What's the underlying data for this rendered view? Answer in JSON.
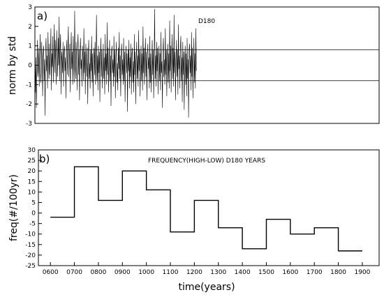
{
  "chart_data": [
    {
      "type": "line",
      "panel_label": "a)",
      "title": "D180",
      "ylabel": "norm by std",
      "ylim": [
        -3,
        3
      ],
      "yticks": [
        "-3",
        "-2",
        "-1",
        "0",
        "1",
        "2",
        "3"
      ],
      "reference_lines": [
        0.8,
        -0.8
      ],
      "grid": false,
      "series": [
        {
          "x_start": 550,
          "x_step": 2,
          "values": [
            0.7,
            -1.4,
            0.4,
            -2.2,
            -0.5,
            1.3,
            -0.6,
            -0.2,
            0.9,
            -1.1,
            0.5,
            1.6,
            -0.9,
            -0.4,
            1.2,
            0.1,
            -1.6,
            0.6,
            1.0,
            -0.8,
            0.3,
            -2.6,
            0.8,
            1.4,
            -0.3,
            0.5,
            -1.2,
            1.7,
            0.2,
            -0.7,
            1.1,
            -0.5,
            0.4,
            1.9,
            -1.3,
            0.6,
            -0.1,
            1.5,
            -0.9,
            0.8,
            2.1,
            -0.4,
            1.3,
            0.2,
            -1.0,
            1.8,
            0.5,
            -0.6,
            1.4,
            0.0,
            2.5,
            -0.8,
            0.9,
            1.6,
            -1.5,
            0.7,
            0.3,
            -0.4,
            1.2,
            -1.1,
            0.6,
            1.0,
            -0.3,
            0.4,
            -1.7,
            0.8,
            1.3,
            -0.5,
            0.9,
            2.0,
            -0.6,
            0.2,
            1.1,
            -1.4,
            0.5,
            1.7,
            -0.2,
            0.7,
            -1.0,
            1.5,
            0.3,
            -0.9,
            2.8,
            0.1,
            -0.7,
            1.2,
            0.4,
            -1.3,
            0.9,
            1.6,
            -0.5,
            0.8,
            -1.8,
            0.6,
            1.4,
            -0.2,
            0.3,
            -1.1,
            1.0,
            0.5,
            -0.8,
            1.9,
            -0.4,
            0.7,
            -1.5,
            1.1,
            0.2,
            -0.6,
            0.9,
            -2.0,
            0.4,
            1.3,
            -0.7,
            0.1,
            -1.2,
            0.8,
            -0.3,
            1.5,
            -0.9,
            0.6,
            -1.6,
            0.3,
            0.9,
            -0.5,
            1.2,
            -1.0,
            0.2,
            2.6,
            -0.8,
            0.5,
            -1.3,
            1.0,
            -0.4,
            0.7,
            -1.9,
            0.3,
            1.4,
            -0.6,
            0.8,
            -1.2,
            0.1,
            1.1,
            -0.7,
            0.4,
            -1.5,
            1.6,
            -0.3,
            0.6,
            -1.0,
            2.2,
            -0.5,
            0.9,
            -1.4,
            0.2,
            1.3,
            -0.8,
            0.5,
            -2.1,
            0.7,
            1.0,
            -0.4,
            0.3,
            -1.1,
            1.5,
            -0.6,
            0.8,
            -1.7,
            0.4,
            1.2,
            -0.9,
            0.1,
            -1.3,
            0.9,
            -0.2,
            1.7,
            -0.7,
            0.5,
            -1.6,
            0.6,
            1.1,
            -0.5,
            0.3,
            -1.0,
            1.4,
            -0.8,
            0.7,
            -1.9,
            0.2,
            1.0,
            -0.4,
            0.6,
            -2.4,
            0.8,
            -0.3,
            1.3,
            -1.2,
            0.4,
            -0.6,
            1.1,
            -1.5,
            0.5,
            0.9,
            -0.9,
            0.2,
            -1.4,
            1.6,
            -0.5,
            0.7,
            -2.0,
            0.3,
            1.2,
            -0.7,
            0.5,
            -1.1,
            1.8,
            -0.3,
            0.8,
            -1.6,
            0.1,
            1.0,
            -0.8,
            0.6,
            -1.3,
            2.0,
            -0.4,
            0.9,
            -1.0,
            0.3,
            1.4,
            -0.6,
            0.7,
            -1.8,
            0.5,
            1.1,
            -0.2,
            0.4,
            -1.2,
            1.5,
            -0.9,
            0.6,
            -1.4,
            0.2,
            1.3,
            -0.5,
            0.8,
            -1.7,
            0.3,
            2.9,
            -0.7,
            0.5,
            -1.1,
            1.2,
            -0.3,
            0.9,
            -1.5,
            0.4,
            1.0,
            -0.8,
            0.6,
            -1.3,
            1.7,
            -0.4,
            0.2,
            -2.2,
            0.7,
            1.4,
            -0.6,
            0.3,
            -1.0,
            1.9,
            -0.5,
            0.8,
            -1.6,
            0.4,
            1.1,
            -0.9,
            0.6,
            -1.2,
            2.3,
            -0.3,
            1.0,
            -1.4,
            0.5,
            1.6,
            -0.7,
            0.9,
            -1.1,
            2.6,
            -0.4,
            0.7,
            -1.8,
            0.3,
            1.3,
            -0.6,
            0.8,
            -1.5,
            2.1,
            -0.2,
            0.5,
            -1.2,
            0.9,
            1.5,
            -0.8,
            0.4,
            -1.9,
            1.2,
            -0.5,
            0.7,
            -2.3,
            0.2,
            1.0,
            -1.0,
            0.6,
            -1.6,
            1.4,
            -0.7,
            0.3,
            -2.7,
            0.8,
            1.1,
            -0.4,
            0.5,
            -1.3,
            1.7,
            -0.6,
            0.9,
            -1.7,
            0.1,
            1.4,
            -0.9,
            0.6,
            -1.2,
            1.9,
            -0.3
          ]
        }
      ]
    },
    {
      "type": "line",
      "step": true,
      "panel_label": "b)",
      "title": "FREQUENCY(HIGH-LOW) D180 YEARS",
      "xlabel": "time(years)",
      "ylabel": "freq(#/100yr)",
      "xlim": [
        550,
        1970
      ],
      "ylim": [
        -25,
        30
      ],
      "xticks": [
        "0600",
        "0700",
        "0800",
        "0900",
        "1000",
        "1100",
        "1200",
        "1300",
        "1400",
        "1500",
        "1600",
        "1700",
        "1800",
        "1900"
      ],
      "yticks": [
        "-25",
        "-20",
        "-15",
        "-10",
        "-5",
        "0",
        "5",
        "10",
        "15",
        "20",
        "25",
        "30"
      ],
      "grid": false,
      "series": [
        {
          "x": [
            600,
            700,
            800,
            900,
            1000,
            1100,
            1200,
            1300,
            1400,
            1500,
            1600,
            1700,
            1800,
            1900
          ],
          "values": [
            -2,
            22,
            6,
            20,
            11,
            -9,
            6,
            -7,
            -17,
            -3,
            -10,
            -7,
            -18,
            -18
          ]
        }
      ]
    }
  ]
}
